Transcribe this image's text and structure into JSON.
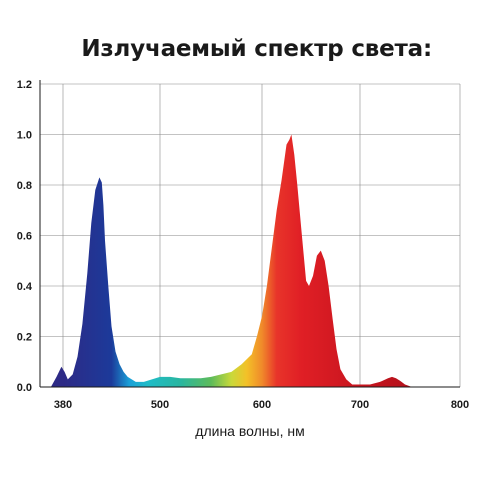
{
  "chart_data": {
    "type": "area",
    "title": "Излучаемый спектр света:",
    "xlabel": "длина волны, нм",
    "ylabel": "",
    "grid": true,
    "x_ticks": [
      "380",
      "500",
      "600",
      "700",
      "800"
    ],
    "y_ticks": [
      "0.0",
      "0.2",
      "0.4",
      "0.6",
      "0.8",
      "1.0",
      "1.2"
    ],
    "ylim": [
      0,
      1.2
    ],
    "series": [
      {
        "x": [
          365,
          372,
          378,
          382,
          386,
          392,
          398,
          404,
          410,
          415,
          420,
          425,
          428,
          430,
          432,
          436,
          440,
          445,
          450,
          455,
          460,
          470,
          480,
          490,
          500,
          510,
          520,
          530,
          540,
          550,
          560,
          570,
          580,
          590,
          595,
          600,
          605,
          610,
          615,
          620,
          625,
          628,
          630,
          633,
          636,
          640,
          645,
          648,
          652,
          656,
          660,
          664,
          668,
          672,
          676,
          680,
          686,
          692,
          700,
          710,
          720,
          728,
          732,
          736,
          740,
          745,
          752,
          760
        ],
        "y": [
          0.0,
          0.04,
          0.08,
          0.06,
          0.03,
          0.05,
          0.12,
          0.25,
          0.45,
          0.65,
          0.78,
          0.83,
          0.81,
          0.72,
          0.58,
          0.4,
          0.24,
          0.14,
          0.09,
          0.06,
          0.04,
          0.02,
          0.02,
          0.03,
          0.04,
          0.04,
          0.035,
          0.035,
          0.035,
          0.04,
          0.05,
          0.06,
          0.09,
          0.13,
          0.2,
          0.28,
          0.4,
          0.55,
          0.7,
          0.82,
          0.96,
          0.98,
          1.0,
          0.92,
          0.8,
          0.63,
          0.42,
          0.4,
          0.44,
          0.52,
          0.54,
          0.5,
          0.4,
          0.27,
          0.15,
          0.07,
          0.03,
          0.01,
          0.01,
          0.01,
          0.02,
          0.035,
          0.04,
          0.035,
          0.025,
          0.01,
          0.0,
          0.0
        ]
      }
    ],
    "colors": {
      "fill_stops": [
        {
          "x": 380,
          "color": "#2d2a86"
        },
        {
          "x": 440,
          "color": "#1c3a9a"
        },
        {
          "x": 462,
          "color": "#1aa0d8"
        },
        {
          "x": 485,
          "color": "#1fbcc8"
        },
        {
          "x": 520,
          "color": "#29b6a0"
        },
        {
          "x": 550,
          "color": "#5dbb5a"
        },
        {
          "x": 570,
          "color": "#c9d93a"
        },
        {
          "x": 585,
          "color": "#f3c128"
        },
        {
          "x": 600,
          "color": "#f08a2a"
        },
        {
          "x": 615,
          "color": "#e8342a"
        },
        {
          "x": 640,
          "color": "#e01f25"
        },
        {
          "x": 700,
          "color": "#c8151f"
        },
        {
          "x": 760,
          "color": "#b0101a"
        }
      ],
      "axis": "#1a1a1a",
      "grid": "#888888"
    }
  }
}
